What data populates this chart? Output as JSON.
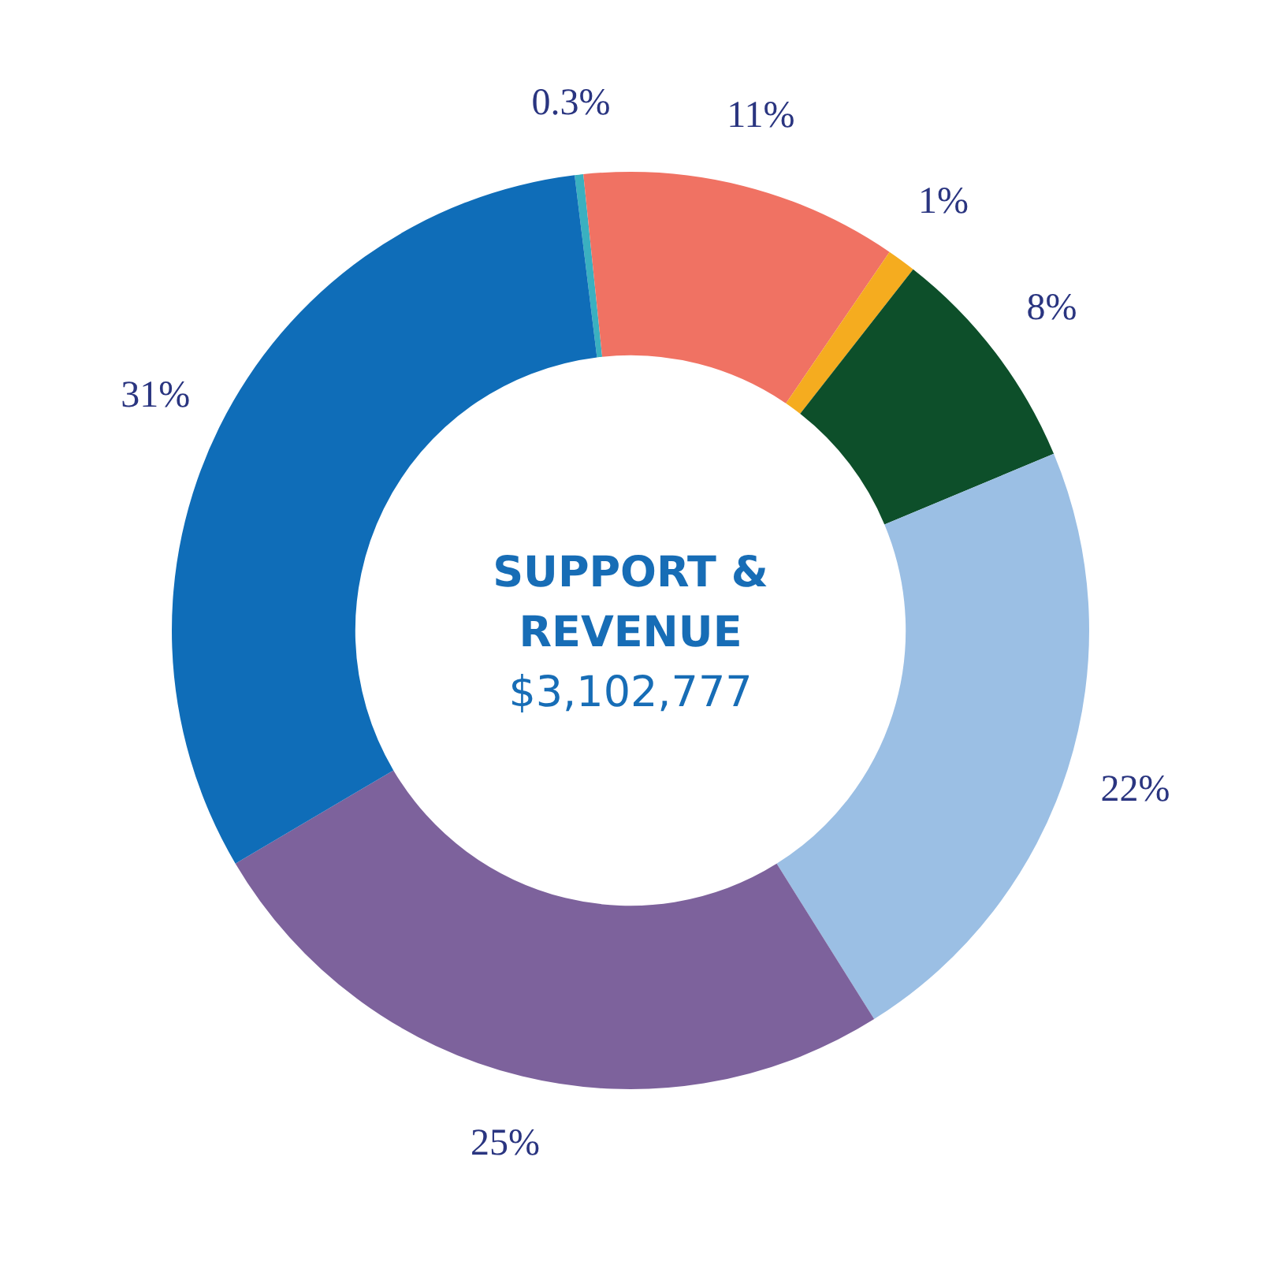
{
  "chart_data": {
    "type": "donut",
    "title": "SUPPORT & REVENUE",
    "subtitle": "$3,102,777",
    "categories": [
      null,
      null,
      null,
      null,
      null,
      null,
      null
    ],
    "values": [
      0.3,
      11,
      1,
      8,
      22,
      25,
      31
    ],
    "colors": [
      "#3ab0c0",
      "#f07263",
      "#f5ac1f",
      "#0d4f2a",
      "#9bbfe4",
      "#7d629c",
      "#0f6db8"
    ],
    "value_labels": [
      "0.3%",
      "11%",
      "1%",
      "8%",
      "22%",
      "25%",
      "31%"
    ],
    "legend": false
  }
}
